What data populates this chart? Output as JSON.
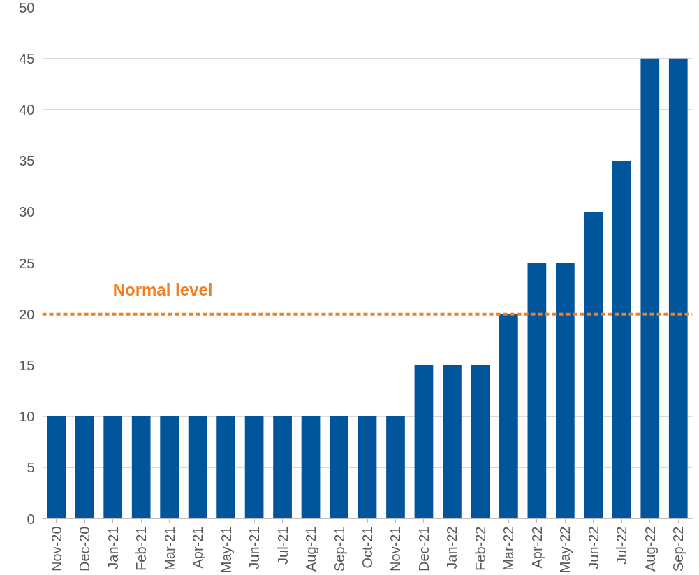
{
  "chart_data": {
    "type": "bar",
    "categories": [
      "Nov-20",
      "Dec-20",
      "Jan-21",
      "Feb-21",
      "Mar-21",
      "Apr-21",
      "May-21",
      "Jun-21",
      "Jul-21",
      "Aug-21",
      "Sep-21",
      "Oct-21",
      "Nov-21",
      "Dec-21",
      "Jan-22",
      "Feb-22",
      "Mar-22",
      "Apr-22",
      "May-22",
      "Jun-22",
      "Jul-22",
      "Aug-22",
      "Sep-22"
    ],
    "values": [
      10,
      10,
      10,
      10,
      10,
      10,
      10,
      10,
      10,
      10,
      10,
      10,
      10,
      15,
      15,
      15,
      20,
      25,
      25,
      30,
      35,
      45,
      45
    ],
    "color": "#00559b",
    "ylim": [
      0,
      50
    ],
    "yticks": [
      0,
      5,
      10,
      15,
      20,
      25,
      30,
      35,
      40,
      45,
      50
    ],
    "grid": "y",
    "ref_lines": [
      {
        "axis": "y",
        "value": 20,
        "label": "Normal level",
        "color": "#f07f22",
        "line_style": "dashed"
      }
    ]
  }
}
